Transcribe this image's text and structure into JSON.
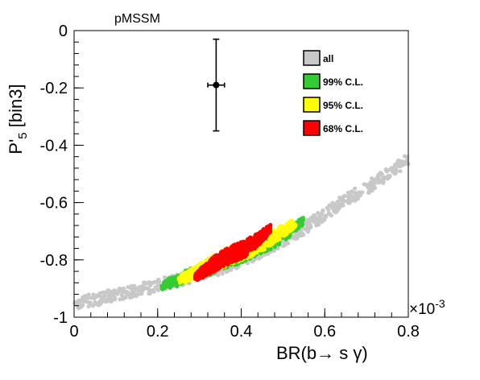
{
  "chart_data": {
    "type": "scatter",
    "title": "pMSSM",
    "xlabel": "BR(b→ s γ)",
    "ylabel_main": "P'",
    "ylabel_sub": "5",
    "ylabel_tail": " [bin3]",
    "x_multiplier_base": "×10",
    "x_multiplier_exp": "-3",
    "xlim": [
      0,
      0.8
    ],
    "ylim": [
      -1,
      0
    ],
    "x_ticks": [
      "0",
      "0.2",
      "0.4",
      "0.6",
      "0.8"
    ],
    "x_tick_values": [
      0,
      0.2,
      0.4,
      0.6,
      0.8
    ],
    "y_ticks": [
      "0",
      "-0.2",
      "-0.4",
      "-0.6",
      "-0.8",
      "-1"
    ],
    "y_tick_values": [
      0,
      -0.2,
      -0.4,
      -0.6,
      -0.8,
      -1
    ],
    "grid": false,
    "legend_position": "top-right",
    "series": [
      {
        "name": "all",
        "color": "#c8c8c8",
        "x_range": [
          0.0,
          0.8
        ],
        "band": "center_y = -0.95 + 0.28*x + 0.25*x^2 (approx.)",
        "points": [
          [
            0.0,
            -0.95
          ],
          [
            0.05,
            -0.94
          ],
          [
            0.1,
            -0.92
          ],
          [
            0.15,
            -0.905
          ],
          [
            0.2,
            -0.89
          ],
          [
            0.25,
            -0.87
          ],
          [
            0.3,
            -0.85
          ],
          [
            0.35,
            -0.83
          ],
          [
            0.4,
            -0.8
          ],
          [
            0.45,
            -0.77
          ],
          [
            0.5,
            -0.73
          ],
          [
            0.55,
            -0.69
          ],
          [
            0.6,
            -0.64
          ],
          [
            0.65,
            -0.59
          ],
          [
            0.7,
            -0.55
          ],
          [
            0.75,
            -0.5
          ],
          [
            0.8,
            -0.45
          ]
        ]
      },
      {
        "name": "99% C.L.",
        "color": "#33cc33",
        "x_range": [
          0.21,
          0.55
        ],
        "points": [
          [
            0.21,
            -0.89
          ],
          [
            0.25,
            -0.87
          ],
          [
            0.3,
            -0.84
          ],
          [
            0.35,
            -0.81
          ],
          [
            0.4,
            -0.78
          ],
          [
            0.45,
            -0.75
          ],
          [
            0.5,
            -0.72
          ],
          [
            0.55,
            -0.66
          ]
        ]
      },
      {
        "name": "95% C.L.",
        "color": "#ffff00",
        "x_range": [
          0.25,
          0.53
        ],
        "points": [
          [
            0.25,
            -0.87
          ],
          [
            0.3,
            -0.84
          ],
          [
            0.35,
            -0.8
          ],
          [
            0.4,
            -0.77
          ],
          [
            0.45,
            -0.74
          ],
          [
            0.5,
            -0.7
          ],
          [
            0.53,
            -0.67
          ]
        ]
      },
      {
        "name": "68% C.L.",
        "color": "#ff0000",
        "x_range": [
          0.29,
          0.47
        ],
        "points": [
          [
            0.29,
            -0.86
          ],
          [
            0.32,
            -0.83
          ],
          [
            0.35,
            -0.8
          ],
          [
            0.38,
            -0.78
          ],
          [
            0.41,
            -0.76
          ],
          [
            0.44,
            -0.73
          ],
          [
            0.47,
            -0.69
          ]
        ]
      }
    ],
    "measurement": {
      "x": 0.34,
      "y": -0.19,
      "x_err": 0.02,
      "y_err_up": 0.16,
      "y_err_down": 0.16
    }
  }
}
